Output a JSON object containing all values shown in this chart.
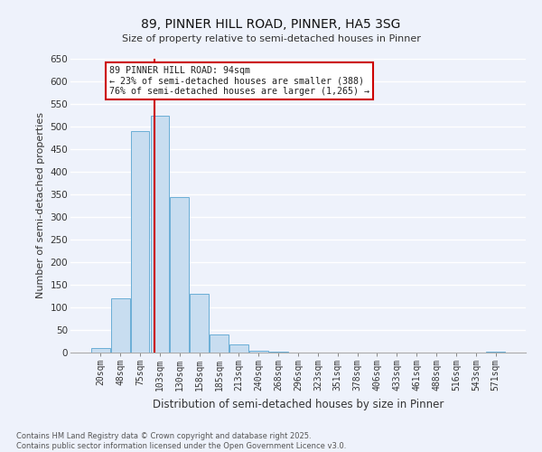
{
  "title": "89, PINNER HILL ROAD, PINNER, HA5 3SG",
  "subtitle": "Size of property relative to semi-detached houses in Pinner",
  "xlabel": "Distribution of semi-detached houses by size in Pinner",
  "ylabel": "Number of semi-detached properties",
  "bar_color": "#c8ddf0",
  "bar_edge_color": "#6aaed6",
  "background_color": "#eef2fb",
  "grid_color": "#ffffff",
  "categories": [
    "20sqm",
    "48sqm",
    "75sqm",
    "103sqm",
    "130sqm",
    "158sqm",
    "185sqm",
    "213sqm",
    "240sqm",
    "268sqm",
    "296sqm",
    "323sqm",
    "351sqm",
    "378sqm",
    "406sqm",
    "433sqm",
    "461sqm",
    "488sqm",
    "516sqm",
    "543sqm",
    "571sqm"
  ],
  "values": [
    10,
    120,
    490,
    525,
    345,
    130,
    40,
    18,
    5,
    3,
    0,
    0,
    0,
    0,
    0,
    0,
    0,
    0,
    0,
    0,
    2
  ],
  "ylim": [
    0,
    650
  ],
  "yticks": [
    0,
    50,
    100,
    150,
    200,
    250,
    300,
    350,
    400,
    450,
    500,
    550,
    600,
    650
  ],
  "property_line_x": 2.73,
  "annotation_title": "89 PINNER HILL ROAD: 94sqm",
  "annotation_line1": "← 23% of semi-detached houses are smaller (388)",
  "annotation_line2": "76% of semi-detached houses are larger (1,265) →",
  "annotation_box_color": "#ffffff",
  "annotation_box_edge_color": "#cc0000",
  "property_line_color": "#cc0000",
  "footer_line1": "Contains HM Land Registry data © Crown copyright and database right 2025.",
  "footer_line2": "Contains public sector information licensed under the Open Government Licence v3.0."
}
